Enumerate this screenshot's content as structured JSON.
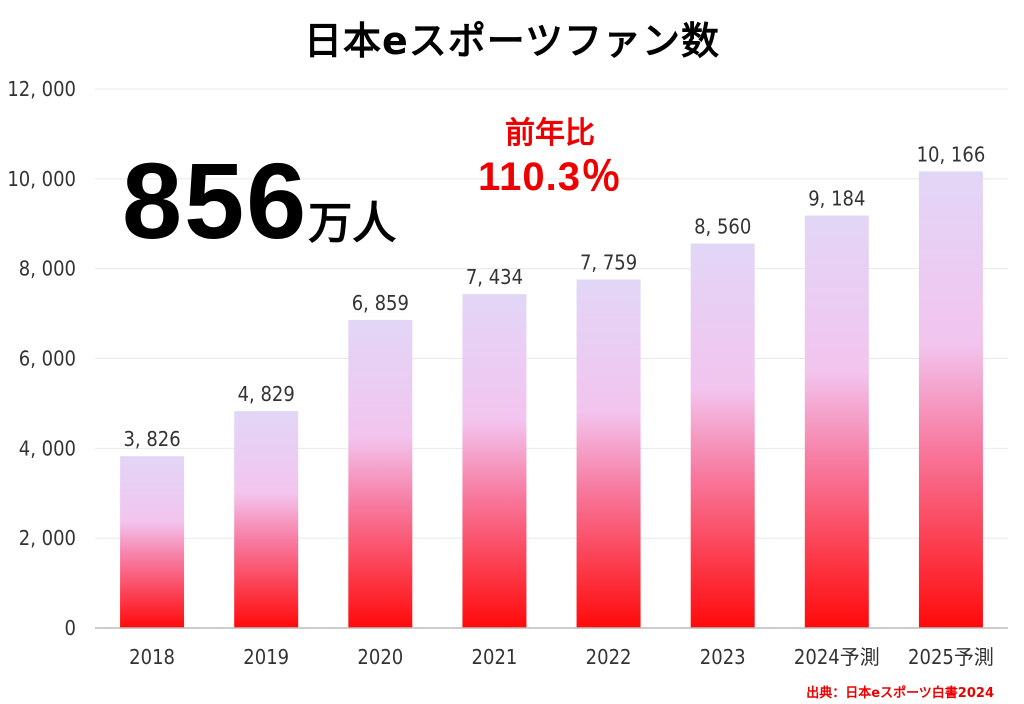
{
  "headline": {
    "total_value": "856",
    "total_unit": "万人",
    "yoy_label": "前年比",
    "yoy_value": "110.3％"
  },
  "source": "出典：日本eスポーツ白書2024",
  "colors": {
    "bar_top": "#e2d6f7",
    "bar_mid": "#f2c4ee",
    "bar_bottom": "#ff0a0a",
    "accent_red": "#ee0000",
    "grid": "#e8e8e8"
  },
  "chart_data": {
    "type": "bar",
    "title": "日本eスポーツファン数",
    "categories": [
      "2018",
      "2019",
      "2020",
      "2021",
      "2022",
      "2023",
      "2024予測",
      "2025予測"
    ],
    "values": [
      3826,
      4829,
      6859,
      7434,
      7759,
      8560,
      9184,
      10166
    ],
    "value_labels": [
      "3, 826",
      "4, 829",
      "6, 859",
      "7, 434",
      "7, 759",
      "8, 560",
      "9, 184",
      "10, 166"
    ],
    "yticks": [
      0,
      2000,
      4000,
      6000,
      8000,
      10000,
      12000
    ],
    "ytick_labels": [
      "0",
      "2, 000",
      "4, 000",
      "6, 000",
      "8, 000",
      "10, 000",
      "12, 000"
    ],
    "ylim": [
      0,
      12000
    ],
    "grid": true,
    "legend": "none",
    "xlabel": "",
    "ylabel": ""
  }
}
